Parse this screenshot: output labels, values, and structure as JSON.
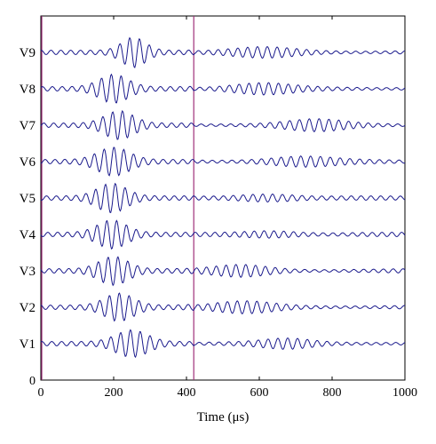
{
  "chart_data": {
    "type": "line",
    "xlabel": "Time (μs)",
    "xlim": [
      0,
      1000
    ],
    "ylim": [
      0,
      10
    ],
    "xticks": [
      "0",
      "200",
      "400",
      "600",
      "800",
      "1000"
    ],
    "yticks": [
      "0"
    ],
    "grid": false,
    "series_color": "#1a1a8c",
    "marker_color": "#a0307a",
    "vertical_markers": [
      0,
      420
    ],
    "traces": [
      {
        "label": "V1",
        "offset": 1,
        "packets": [
          {
            "center": 250,
            "width": 60,
            "amp": 0.32
          },
          {
            "center": 680,
            "width": 90,
            "amp": 0.1
          }
        ]
      },
      {
        "label": "V2",
        "offset": 2,
        "packets": [
          {
            "center": 215,
            "width": 55,
            "amp": 0.33
          },
          {
            "center": 560,
            "width": 110,
            "amp": 0.12
          }
        ]
      },
      {
        "label": "V3",
        "offset": 3,
        "packets": [
          {
            "center": 200,
            "width": 55,
            "amp": 0.34
          },
          {
            "center": 560,
            "width": 100,
            "amp": 0.13
          }
        ]
      },
      {
        "label": "V4",
        "offset": 4,
        "packets": [
          {
            "center": 195,
            "width": 55,
            "amp": 0.34
          },
          {
            "center": 640,
            "width": 90,
            "amp": 0.11
          }
        ]
      },
      {
        "label": "V5",
        "offset": 5,
        "packets": [
          {
            "center": 195,
            "width": 55,
            "amp": 0.35
          },
          {
            "center": 620,
            "width": 90,
            "amp": 0.14
          }
        ]
      },
      {
        "label": "V6",
        "offset": 6,
        "packets": [
          {
            "center": 200,
            "width": 60,
            "amp": 0.34
          },
          {
            "center": 700,
            "width": 120,
            "amp": 0.12
          }
        ]
      },
      {
        "label": "V7",
        "offset": 7,
        "packets": [
          {
            "center": 215,
            "width": 55,
            "amp": 0.34
          },
          {
            "center": 760,
            "width": 110,
            "amp": 0.12
          }
        ]
      },
      {
        "label": "V8",
        "offset": 8,
        "packets": [
          {
            "center": 200,
            "width": 55,
            "amp": 0.34
          },
          {
            "center": 600,
            "width": 110,
            "amp": 0.12
          }
        ]
      },
      {
        "label": "V9",
        "offset": 9,
        "packets": [
          {
            "center": 255,
            "width": 45,
            "amp": 0.36
          },
          {
            "center": 620,
            "width": 120,
            "amp": 0.1
          }
        ]
      }
    ]
  }
}
